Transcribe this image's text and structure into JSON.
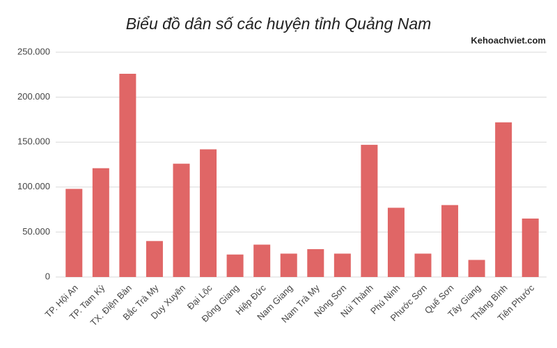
{
  "chart_data": {
    "type": "bar",
    "title": "Biểu đồ dân số các huyện tỉnh Quảng Nam",
    "watermark": "Kehoachviet.com",
    "categories": [
      "TP. Hội An",
      "TP. Tam Kỳ",
      "TX. Điện Bàn",
      "Bắc Trà My",
      "Duy Xuyên",
      "Đại Lộc",
      "Đông Giang",
      "Hiệp Đức",
      "Nam Giang",
      "Nam Trà My",
      "Nông Sơn",
      "Núi Thành",
      "Phú Ninh",
      "Phước Sơn",
      "Quế Sơn",
      "Tây Giang",
      "Thăng Bình",
      "Tiên Phước"
    ],
    "values": [
      98000,
      121000,
      226000,
      40000,
      126000,
      142000,
      25000,
      36000,
      26000,
      31000,
      26000,
      147000,
      77000,
      26000,
      80000,
      19000,
      172000,
      65000
    ],
    "color": "#e06666",
    "ylim": [
      0,
      250000
    ],
    "yticks": [
      0,
      {
        "value": 50000,
        "label": "50.000"
      },
      {
        "value": 100000,
        "label": "100.000"
      },
      {
        "value": 150000,
        "label": "150.000"
      },
      {
        "value": 200000,
        "label": "200.000"
      },
      {
        "value": 250000,
        "label": "250.000"
      }
    ],
    "grid": true
  }
}
